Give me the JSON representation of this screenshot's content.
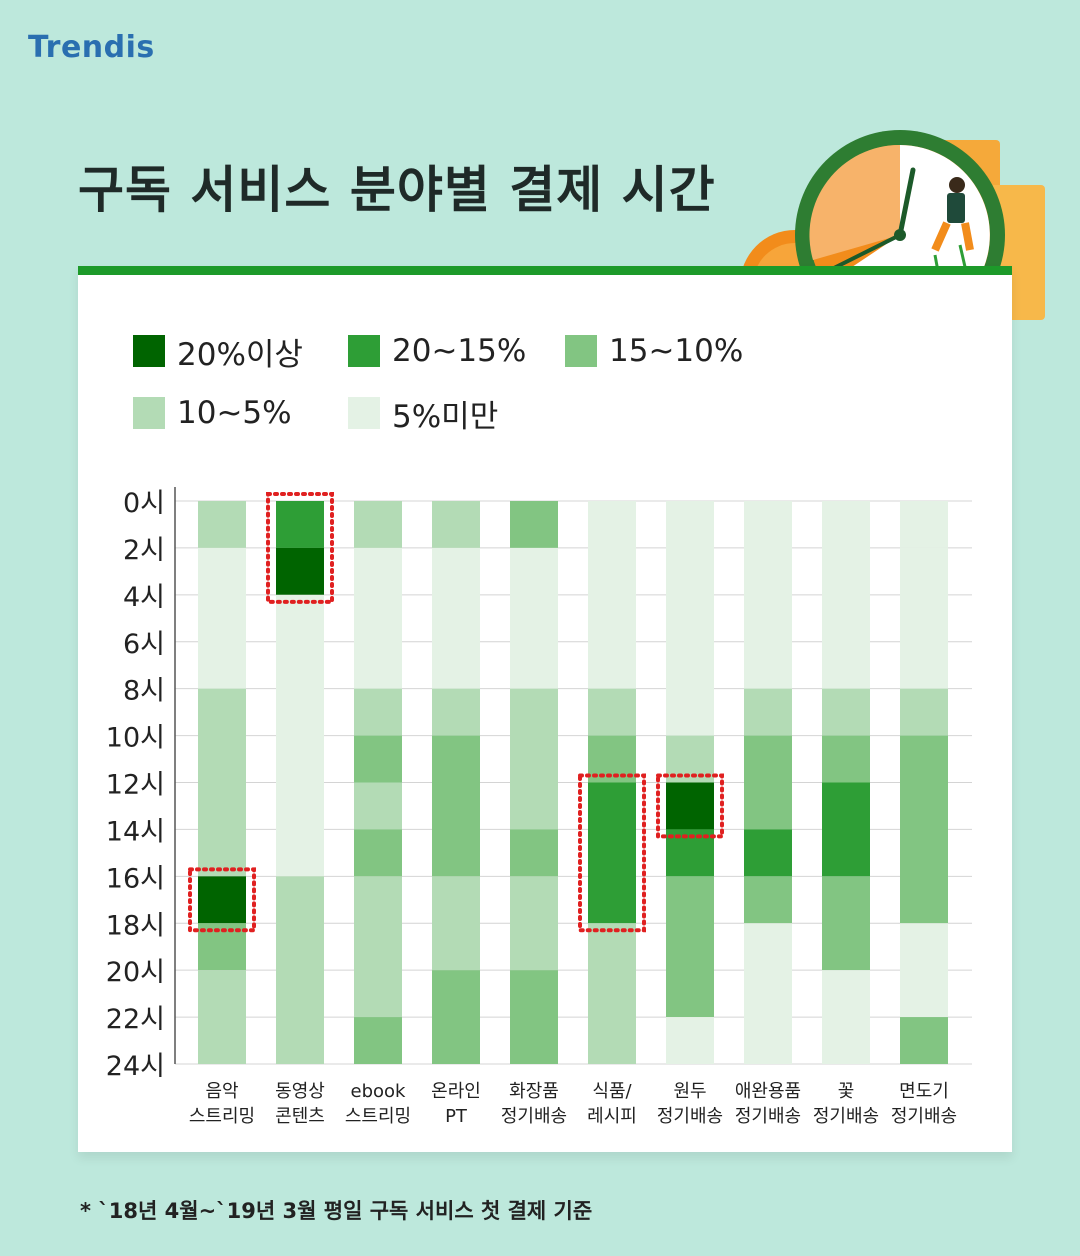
{
  "brand": {
    "logo_text": "Trendis"
  },
  "title": "구독 서비스 분야별 결제 시간",
  "note": "* `18년 4월~`19년 3월 평일 구독 서비스 첫 결제 기준",
  "legend": [
    {
      "key": "l1",
      "label": "20%이상",
      "color": "#006400"
    },
    {
      "key": "l2",
      "label": "20~15%",
      "color": "#2e9e36"
    },
    {
      "key": "l3",
      "label": "15~10%",
      "color": "#82c582"
    },
    {
      "key": "l4",
      "label": "10~5%",
      "color": "#b3dbb5"
    },
    {
      "key": "l5",
      "label": "5%미만",
      "color": "#e4f2e5"
    }
  ],
  "chart_data": {
    "type": "heatmap",
    "y_labels": [
      "0시",
      "2시",
      "4시",
      "6시",
      "8시",
      "10시",
      "12시",
      "14시",
      "16시",
      "18시",
      "20시",
      "22시",
      "24시"
    ],
    "y_range": [
      0,
      24
    ],
    "categories": [
      {
        "line1": "음악",
        "line2": "스트리밍"
      },
      {
        "line1": "동영상",
        "line2": "콘텐츠"
      },
      {
        "line1": "ebook",
        "line2": "스트리밍"
      },
      {
        "line1": "온라인",
        "line2": "PT"
      },
      {
        "line1": "화장품",
        "line2": "정기배송"
      },
      {
        "line1": "식품/",
        "line2": "레시피"
      },
      {
        "line1": "원두",
        "line2": "정기배송"
      },
      {
        "line1": "애완용품",
        "line2": "정기배송"
      },
      {
        "line1": "꽃",
        "line2": "정기배송"
      },
      {
        "line1": "면도기",
        "line2": "정기배송"
      }
    ],
    "levels": [
      "20%이상",
      "20~15%",
      "15~10%",
      "10~5%",
      "5%미만"
    ],
    "level_colors": [
      "#006400",
      "#2e9e36",
      "#82c582",
      "#b3dbb5",
      "#e4f2e5"
    ],
    "values": [
      [
        {
          "from": 0,
          "to": 2,
          "level": 3
        },
        {
          "from": 2,
          "to": 8,
          "level": 4
        },
        {
          "from": 8,
          "to": 16,
          "level": 3
        },
        {
          "from": 16,
          "to": 18,
          "level": 0
        },
        {
          "from": 18,
          "to": 20,
          "level": 2
        },
        {
          "from": 20,
          "to": 24,
          "level": 3
        }
      ],
      [
        {
          "from": 0,
          "to": 2,
          "level": 1
        },
        {
          "from": 2,
          "to": 4,
          "level": 0
        },
        {
          "from": 4,
          "to": 16,
          "level": 4
        },
        {
          "from": 16,
          "to": 24,
          "level": 3
        }
      ],
      [
        {
          "from": 0,
          "to": 2,
          "level": 3
        },
        {
          "from": 2,
          "to": 8,
          "level": 4
        },
        {
          "from": 8,
          "to": 10,
          "level": 3
        },
        {
          "from": 10,
          "to": 12,
          "level": 2
        },
        {
          "from": 12,
          "to": 14,
          "level": 3
        },
        {
          "from": 14,
          "to": 16,
          "level": 2
        },
        {
          "from": 16,
          "to": 22,
          "level": 3
        },
        {
          "from": 22,
          "to": 24,
          "level": 2
        }
      ],
      [
        {
          "from": 0,
          "to": 2,
          "level": 3
        },
        {
          "from": 2,
          "to": 8,
          "level": 4
        },
        {
          "from": 8,
          "to": 10,
          "level": 3
        },
        {
          "from": 10,
          "to": 16,
          "level": 2
        },
        {
          "from": 16,
          "to": 20,
          "level": 3
        },
        {
          "from": 20,
          "to": 24,
          "level": 2
        }
      ],
      [
        {
          "from": 0,
          "to": 2,
          "level": 2
        },
        {
          "from": 2,
          "to": 8,
          "level": 4
        },
        {
          "from": 8,
          "to": 14,
          "level": 3
        },
        {
          "from": 14,
          "to": 16,
          "level": 2
        },
        {
          "from": 16,
          "to": 20,
          "level": 3
        },
        {
          "from": 20,
          "to": 24,
          "level": 2
        }
      ],
      [
        {
          "from": 0,
          "to": 8,
          "level": 4
        },
        {
          "from": 8,
          "to": 10,
          "level": 3
        },
        {
          "from": 10,
          "to": 12,
          "level": 2
        },
        {
          "from": 12,
          "to": 18,
          "level": 1
        },
        {
          "from": 18,
          "to": 24,
          "level": 3
        }
      ],
      [
        {
          "from": 0,
          "to": 10,
          "level": 4
        },
        {
          "from": 10,
          "to": 12,
          "level": 3
        },
        {
          "from": 12,
          "to": 14,
          "level": 0
        },
        {
          "from": 14,
          "to": 16,
          "level": 1
        },
        {
          "from": 16,
          "to": 22,
          "level": 2
        },
        {
          "from": 22,
          "to": 24,
          "level": 4
        }
      ],
      [
        {
          "from": 0,
          "to": 8,
          "level": 4
        },
        {
          "from": 8,
          "to": 10,
          "level": 3
        },
        {
          "from": 10,
          "to": 14,
          "level": 2
        },
        {
          "from": 14,
          "to": 16,
          "level": 1
        },
        {
          "from": 16,
          "to": 18,
          "level": 2
        },
        {
          "from": 18,
          "to": 24,
          "level": 4
        }
      ],
      [
        {
          "from": 0,
          "to": 8,
          "level": 4
        },
        {
          "from": 8,
          "to": 10,
          "level": 3
        },
        {
          "from": 10,
          "to": 12,
          "level": 2
        },
        {
          "from": 12,
          "to": 16,
          "level": 1
        },
        {
          "from": 16,
          "to": 20,
          "level": 2
        },
        {
          "from": 20,
          "to": 24,
          "level": 4
        }
      ],
      [
        {
          "from": 0,
          "to": 2,
          "level": 4
        },
        {
          "from": 2,
          "to": 8,
          "level": 4
        },
        {
          "from": 8,
          "to": 10,
          "level": 3
        },
        {
          "from": 10,
          "to": 18,
          "level": 2
        },
        {
          "from": 18,
          "to": 22,
          "level": 4
        },
        {
          "from": 22,
          "to": 24,
          "level": 2
        }
      ]
    ],
    "highlights": [
      {
        "category": 0,
        "from": 16,
        "to": 18
      },
      {
        "category": 1,
        "from": 0,
        "to": 4
      },
      {
        "category": 5,
        "from": 12,
        "to": 18
      },
      {
        "category": 6,
        "from": 12,
        "to": 14
      }
    ],
    "highlight_color": "#e02020",
    "grid": true,
    "legend_position": "top-left"
  }
}
